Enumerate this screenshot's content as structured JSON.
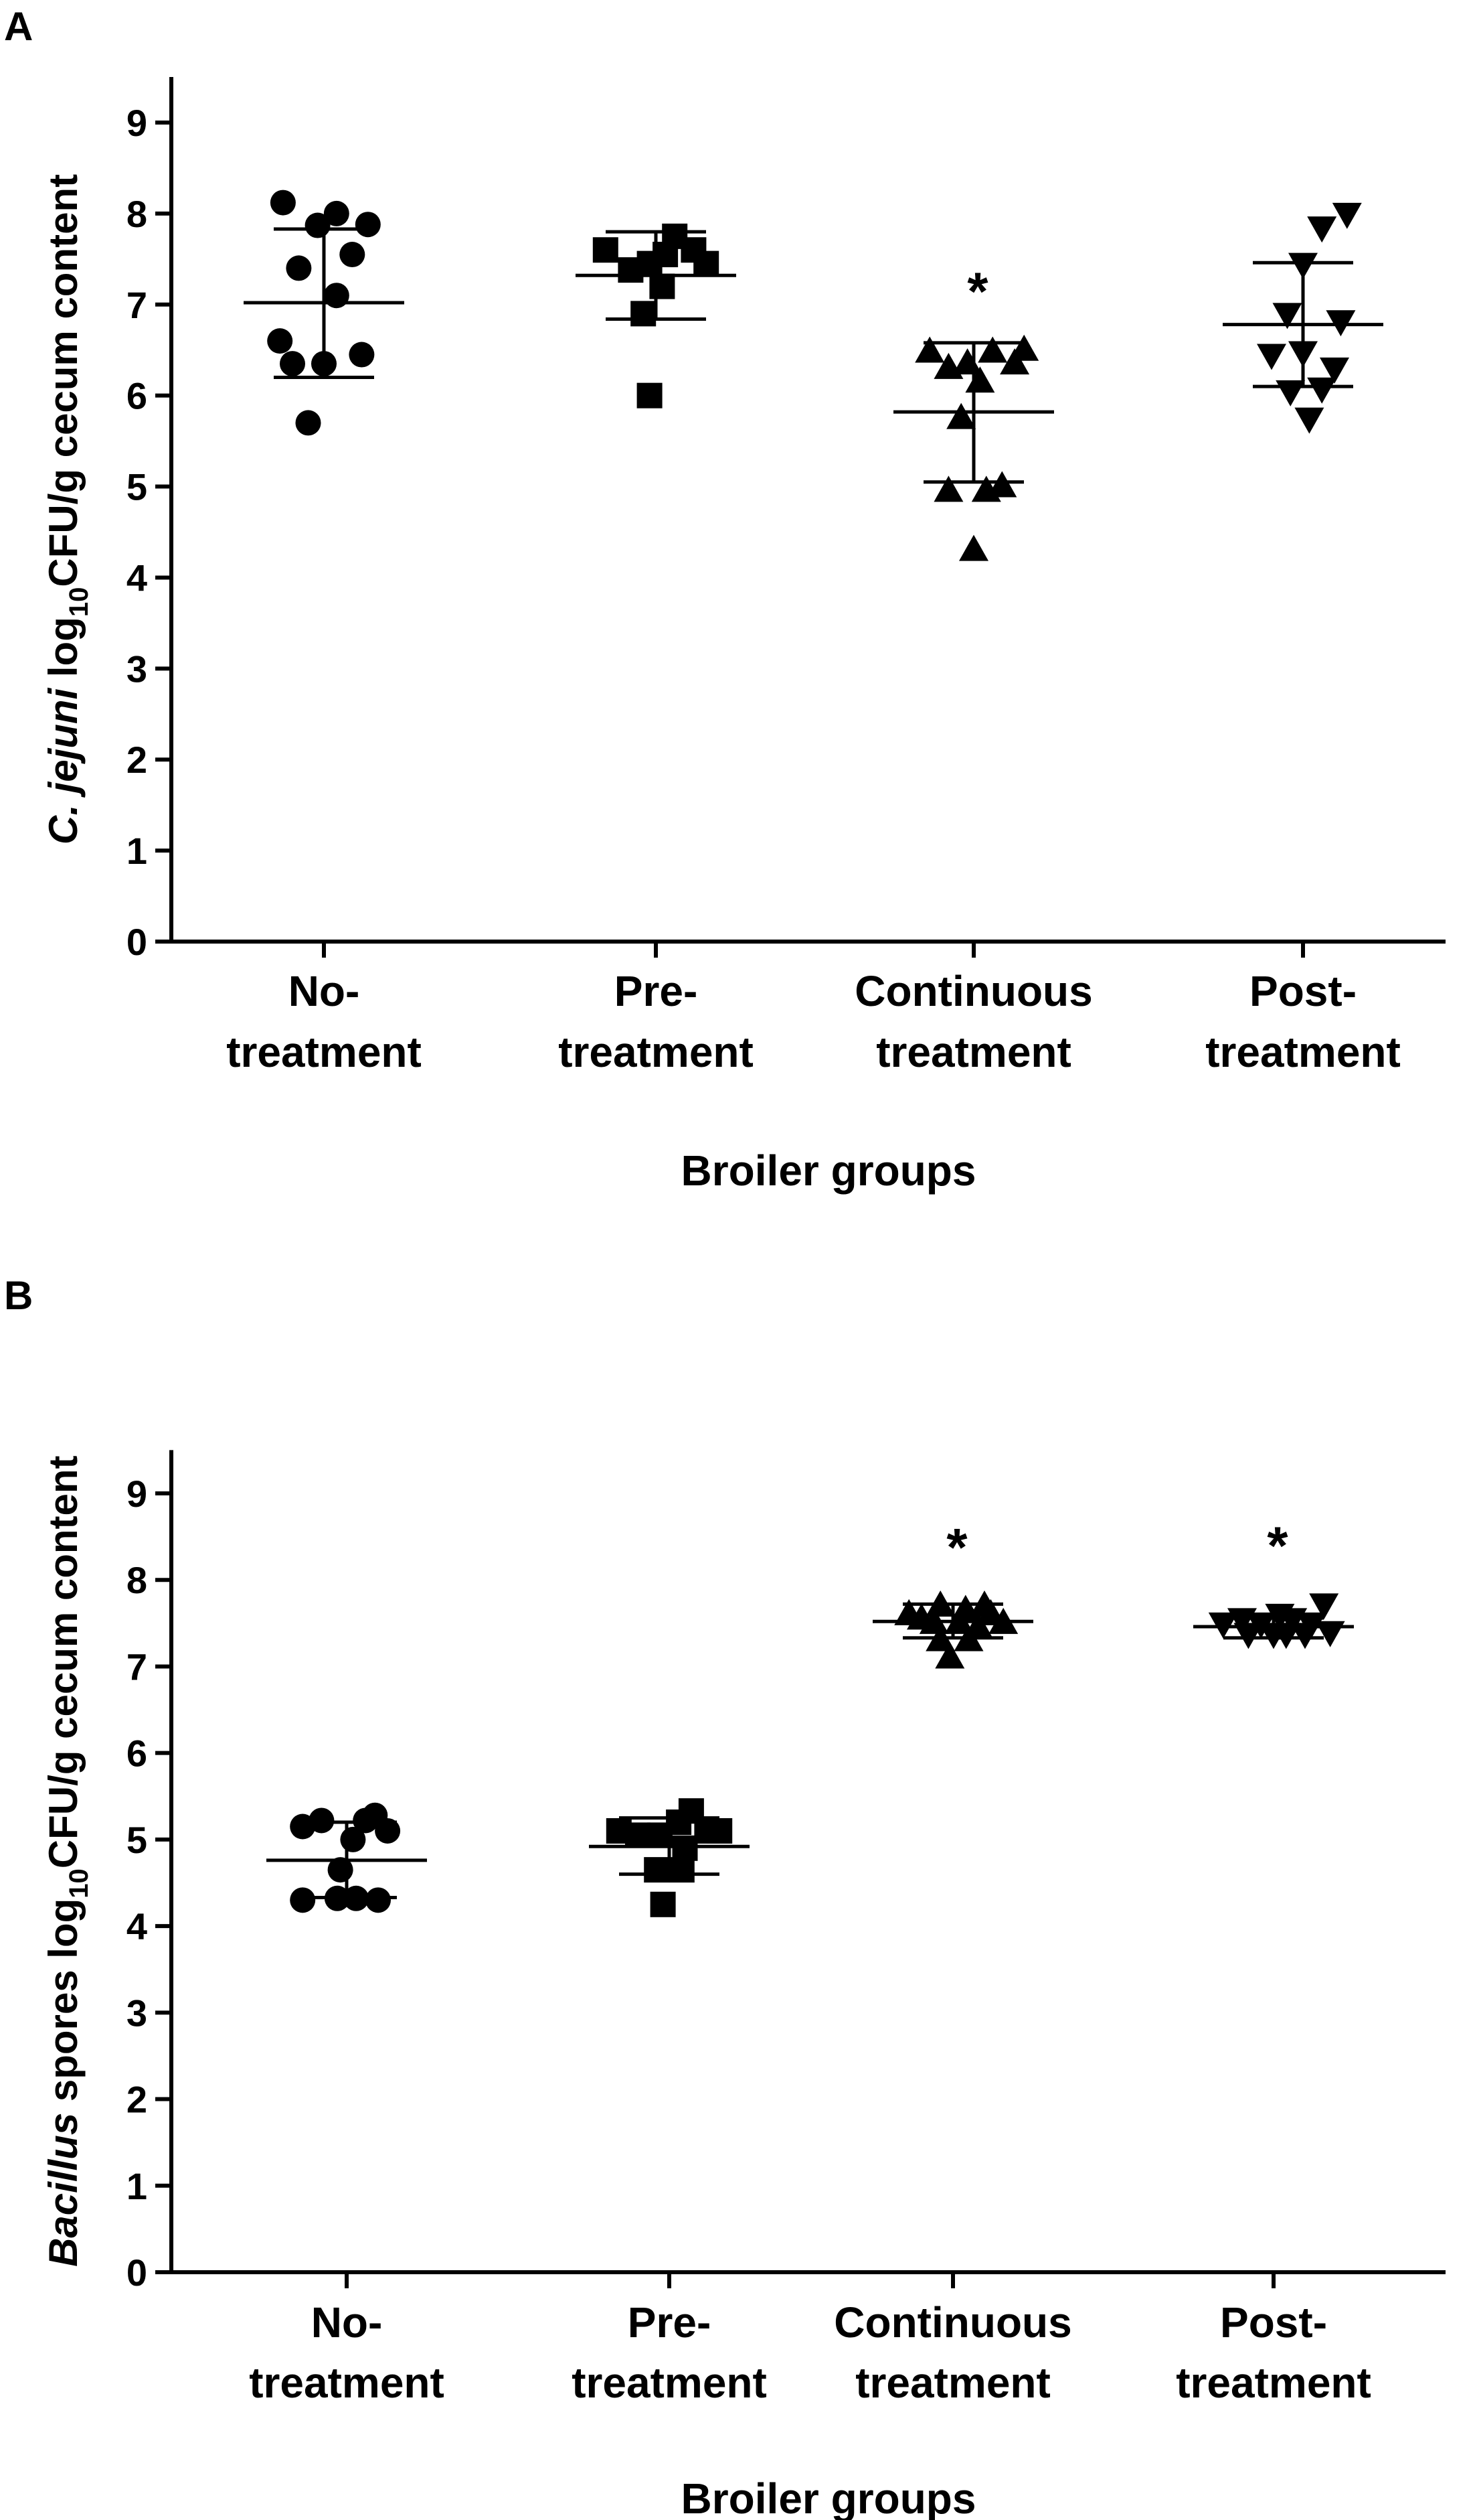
{
  "chart_data": [
    {
      "panel": "A",
      "type": "scatter",
      "title": "",
      "ylabel": {
        "italic": "C. jejuni",
        "pre": " log",
        "sub": "10",
        "post": "CFU/g cecum content"
      },
      "xlabel": "Broiler groups",
      "ylim": [
        0,
        9.5
      ],
      "yticks": [
        "0",
        "1",
        "2",
        "3",
        "4",
        "5",
        "6",
        "7",
        "8",
        "9"
      ],
      "categories": [
        {
          "lines": [
            "No-",
            "treatment"
          ]
        },
        {
          "lines": [
            "Pre-",
            "treatment"
          ]
        },
        {
          "lines": [
            "Continuous",
            "treatment"
          ]
        },
        {
          "lines": [
            "Post-",
            "treatment"
          ]
        }
      ],
      "series": [
        {
          "name": "No-treatment",
          "marker": "circle",
          "points": [
            [
              -0.13,
              8.12
            ],
            [
              -0.02,
              7.87
            ],
            [
              0.14,
              7.88
            ],
            [
              0.04,
              8.0
            ],
            [
              0.09,
              7.55
            ],
            [
              -0.08,
              7.4
            ],
            [
              0.04,
              7.1
            ],
            [
              -0.14,
              6.6
            ],
            [
              -0.1,
              6.35
            ],
            [
              0.0,
              6.35
            ],
            [
              0.12,
              6.45
            ],
            [
              -0.05,
              5.7
            ]
          ],
          "mean": 7.02,
          "sd_low": 6.2,
          "sd_high": 7.83,
          "star": false
        },
        {
          "name": "Pre-treatment",
          "marker": "square",
          "points": [
            [
              -0.16,
              7.6
            ],
            [
              -0.08,
              7.38
            ],
            [
              -0.02,
              7.45
            ],
            [
              0.03,
              7.55
            ],
            [
              0.06,
              7.75
            ],
            [
              0.12,
              7.6
            ],
            [
              0.16,
              7.45
            ],
            [
              0.02,
              7.2
            ],
            [
              -0.04,
              6.9
            ],
            [
              -0.02,
              6.0
            ]
          ],
          "mean": 7.32,
          "sd_low": 6.84,
          "sd_high": 7.8,
          "star": false
        },
        {
          "name": "Continuous treatment",
          "marker": "triangle-up",
          "points": [
            [
              -0.14,
              6.48
            ],
            [
              -0.08,
              6.3
            ],
            [
              -0.02,
              6.35
            ],
            [
              0.06,
              6.48
            ],
            [
              0.13,
              6.35
            ],
            [
              0.16,
              6.5
            ],
            [
              0.02,
              6.15
            ],
            [
              -0.04,
              5.75
            ],
            [
              -0.08,
              4.95
            ],
            [
              0.04,
              4.95
            ],
            [
              0.09,
              5.0
            ],
            [
              0.0,
              4.3
            ]
          ],
          "mean": 5.82,
          "sd_low": 5.05,
          "sd_high": 6.58,
          "star": true
        },
        {
          "name": "Post-treatment",
          "marker": "triangle-down",
          "points": [
            [
              0.06,
              7.85
            ],
            [
              0.14,
              8.0
            ],
            [
              0.0,
              7.45
            ],
            [
              -0.05,
              6.9
            ],
            [
              0.12,
              6.82
            ],
            [
              -0.1,
              6.45
            ],
            [
              0.0,
              6.48
            ],
            [
              0.1,
              6.3
            ],
            [
              -0.04,
              6.05
            ],
            [
              0.06,
              6.08
            ],
            [
              0.02,
              5.75
            ]
          ],
          "mean": 6.78,
          "sd_low": 6.1,
          "sd_high": 7.46,
          "star": false
        }
      ],
      "annotations": [
        "*"
      ]
    },
    {
      "panel": "B",
      "type": "scatter",
      "title": "",
      "ylabel": {
        "italic": "Bacillus",
        "pre": " spores log",
        "sub": "10",
        "post": "CFU/g cecum content"
      },
      "xlabel": "Broiler groups",
      "ylim": [
        0,
        9.5
      ],
      "yticks": [
        "0",
        "1",
        "2",
        "3",
        "4",
        "5",
        "6",
        "7",
        "8",
        "9"
      ],
      "categories": [
        {
          "lines": [
            "No-",
            "treatment"
          ]
        },
        {
          "lines": [
            "Pre-",
            "treatment"
          ]
        },
        {
          "lines": [
            "Continuous",
            "treatment"
          ]
        },
        {
          "lines": [
            "Post-",
            "treatment"
          ]
        }
      ],
      "series": [
        {
          "name": "No-treatment",
          "marker": "circle",
          "points": [
            [
              -0.14,
              5.15
            ],
            [
              -0.08,
              5.22
            ],
            [
              0.06,
              5.22
            ],
            [
              0.13,
              5.1
            ],
            [
              0.09,
              5.28
            ],
            [
              0.02,
              5.0
            ],
            [
              -0.02,
              4.65
            ],
            [
              -0.14,
              4.3
            ],
            [
              -0.03,
              4.32
            ],
            [
              0.03,
              4.32
            ],
            [
              0.1,
              4.3
            ]
          ],
          "mean": 4.76,
          "sd_low": 4.33,
          "sd_high": 5.2,
          "star": false
        },
        {
          "name": "Pre-treatment",
          "marker": "square",
          "points": [
            [
              -0.16,
              5.1
            ],
            [
              -0.1,
              5.05
            ],
            [
              -0.03,
              5.05
            ],
            [
              0.03,
              5.2
            ],
            [
              0.07,
              5.33
            ],
            [
              0.12,
              5.1
            ],
            [
              0.16,
              5.1
            ],
            [
              0.05,
              4.9
            ],
            [
              -0.04,
              4.65
            ],
            [
              0.04,
              4.65
            ],
            [
              -0.02,
              4.25
            ]
          ],
          "mean": 4.92,
          "sd_low": 4.6,
          "sd_high": 5.25,
          "star": false
        },
        {
          "name": "Continuous treatment",
          "marker": "triangle-up",
          "points": [
            [
              -0.14,
              7.6
            ],
            [
              -0.1,
              7.55
            ],
            [
              -0.04,
              7.7
            ],
            [
              0.04,
              7.65
            ],
            [
              0.1,
              7.7
            ],
            [
              0.12,
              7.6
            ],
            [
              0.16,
              7.5
            ],
            [
              -0.06,
              7.5
            ],
            [
              0.02,
              7.5
            ],
            [
              0.08,
              7.45
            ],
            [
              -0.04,
              7.3
            ],
            [
              0.05,
              7.3
            ],
            [
              -0.01,
              7.1
            ]
          ],
          "mean": 7.52,
          "sd_low": 7.33,
          "sd_high": 7.72,
          "star": true
        },
        {
          "name": "Post-treatment",
          "marker": "triangle-down",
          "points": [
            [
              -0.16,
              7.5
            ],
            [
              -0.1,
              7.55
            ],
            [
              -0.04,
              7.5
            ],
            [
              0.02,
              7.6
            ],
            [
              0.06,
              7.55
            ],
            [
              0.12,
              7.5
            ],
            [
              0.16,
              7.72
            ],
            [
              -0.08,
              7.38
            ],
            [
              0.0,
              7.38
            ],
            [
              0.04,
              7.38
            ],
            [
              0.1,
              7.38
            ],
            [
              0.18,
              7.4
            ]
          ],
          "mean": 7.46,
          "sd_low": 7.33,
          "sd_high": 7.56,
          "star": true
        }
      ],
      "annotations": [
        "*",
        "*"
      ]
    }
  ]
}
